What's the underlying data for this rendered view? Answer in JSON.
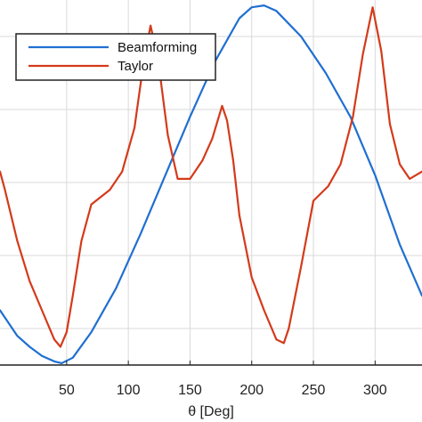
{
  "chart_data": {
    "type": "line",
    "xlabel": "θ [Deg]",
    "ylabel": "",
    "xlim": [
      -4,
      338
    ],
    "ylim": [
      0,
      1
    ],
    "xticks": [
      50,
      100,
      150,
      200,
      250,
      300
    ],
    "xtick_labels": [
      "50",
      "100",
      "150",
      "200",
      "250",
      "300"
    ],
    "grid": true,
    "legend": {
      "placement": "top-left",
      "entries": [
        "Beamforming",
        "Taylor"
      ]
    },
    "series": [
      {
        "name": "Beamforming",
        "color": "#1f6fd1",
        "x": [
          -4,
          10,
          20,
          30,
          40,
          46,
          55,
          70,
          90,
          110,
          130,
          150,
          170,
          190,
          200,
          210,
          220,
          240,
          260,
          280,
          300,
          320,
          338
        ],
        "y": [
          0.15,
          0.08,
          0.05,
          0.025,
          0.01,
          0.005,
          0.02,
          0.09,
          0.21,
          0.36,
          0.52,
          0.68,
          0.83,
          0.95,
          0.98,
          0.985,
          0.97,
          0.9,
          0.8,
          0.68,
          0.52,
          0.33,
          0.19
        ]
      },
      {
        "name": "Taylor",
        "color": "#d43a1a",
        "x": [
          -4,
          0,
          10,
          20,
          30,
          40,
          45,
          50,
          55,
          62,
          70,
          85,
          95,
          105,
          112,
          118,
          124,
          132,
          140,
          150,
          160,
          168,
          176,
          180,
          185,
          190,
          200,
          210,
          220,
          226,
          230,
          240,
          250,
          262,
          272,
          282,
          290,
          298,
          305,
          312,
          320,
          328,
          338
        ],
        "y": [
          0.53,
          0.48,
          0.34,
          0.23,
          0.15,
          0.07,
          0.05,
          0.09,
          0.19,
          0.34,
          0.44,
          0.48,
          0.53,
          0.65,
          0.82,
          0.93,
          0.84,
          0.63,
          0.51,
          0.51,
          0.56,
          0.62,
          0.71,
          0.67,
          0.56,
          0.41,
          0.24,
          0.15,
          0.07,
          0.06,
          0.1,
          0.27,
          0.45,
          0.49,
          0.55,
          0.68,
          0.85,
          0.98,
          0.86,
          0.66,
          0.55,
          0.51,
          0.53
        ]
      }
    ]
  }
}
